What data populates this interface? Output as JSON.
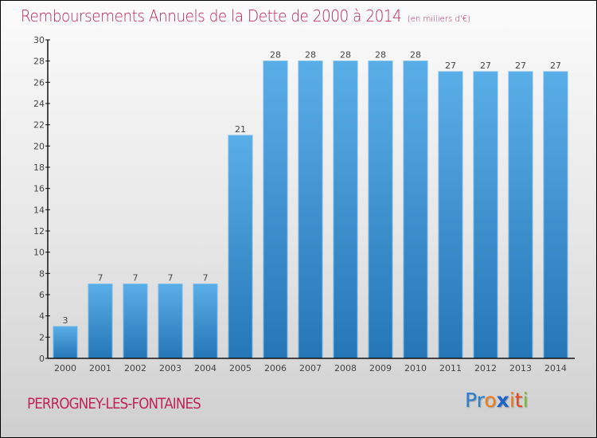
{
  "chart_data": {
    "type": "bar",
    "title": "Remboursements Annuels de la Dette de 2000 à 2014",
    "subtitle": "(en milliers d'€)",
    "xlabel": "",
    "ylabel": "",
    "categories": [
      "2000",
      "2001",
      "2002",
      "2003",
      "2004",
      "2005",
      "2006",
      "2007",
      "2008",
      "2009",
      "2010",
      "2011",
      "2012",
      "2013",
      "2014"
    ],
    "values": [
      3,
      7,
      7,
      7,
      7,
      21,
      28,
      28,
      28,
      28,
      28,
      27,
      27,
      27,
      27
    ],
    "ylim": [
      0,
      30
    ],
    "yticks": [
      0,
      2,
      4,
      6,
      8,
      10,
      12,
      14,
      16,
      18,
      20,
      22,
      24,
      26,
      28,
      30
    ],
    "grid": false,
    "bar_color": "#3d94d6",
    "data_labels": true
  },
  "footer": {
    "city": "PERROGNEY-LES-FONTAINES",
    "logo": [
      {
        "text": "Pr",
        "color": "#2b7fd1"
      },
      {
        "text": "o",
        "color": "#f07b1c"
      },
      {
        "text": "x",
        "color": "#1f63c9"
      },
      {
        "text": "i",
        "color": "#f07b1c"
      },
      {
        "text": "t",
        "color": "#e8451e"
      },
      {
        "text": "i",
        "color": "#7cbd2a"
      }
    ]
  }
}
